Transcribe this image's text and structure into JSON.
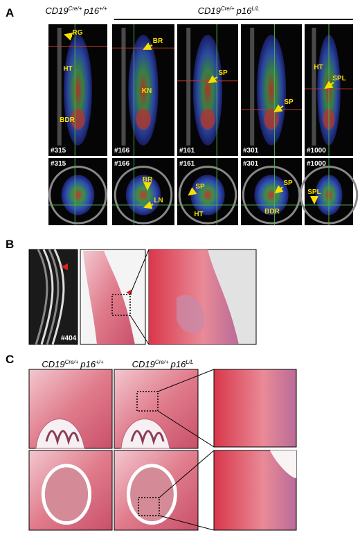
{
  "panel_a": {
    "label": "A",
    "left_genotype": {
      "gene": "CD19",
      "gene_sup": "Cre/+",
      "locus": "p16",
      "locus_sup": "+/+"
    },
    "right_genotype": {
      "gene": "CD19",
      "gene_sup": "Cre/+",
      "locus": "p16",
      "locus_sup": "L/L"
    },
    "top_row": [
      {
        "id": "#315",
        "labels": [
          "RG",
          "HT",
          "BDR"
        ]
      },
      {
        "id": "#166",
        "labels": [
          "BR",
          "KN"
        ]
      },
      {
        "id": "#161",
        "labels": [
          "SP"
        ]
      },
      {
        "id": "#301",
        "labels": [
          "SP"
        ]
      },
      {
        "id": "#1000",
        "labels": [
          "HT",
          "SPL"
        ]
      }
    ],
    "bottom_row": [
      {
        "id": "#315",
        "labels": []
      },
      {
        "id": "#166",
        "labels": [
          "BR",
          "LN"
        ]
      },
      {
        "id": "#161",
        "labels": [
          "SP",
          "HT"
        ]
      },
      {
        "id": "#301",
        "labels": [
          "SP",
          "BDR"
        ]
      },
      {
        "id": "#1000",
        "labels": [
          "SPL"
        ]
      }
    ]
  },
  "panel_b": {
    "label": "B",
    "scan_id": "#404"
  },
  "panel_c": {
    "label": "C",
    "left_genotype": {
      "gene": "CD19",
      "gene_sup": "Cre/+",
      "locus": "p16",
      "locus_sup": "+/+"
    },
    "right_genotype": {
      "gene": "CD19",
      "gene_sup": "Cre/+",
      "locus": "p16",
      "locus_sup": "L/L"
    }
  }
}
